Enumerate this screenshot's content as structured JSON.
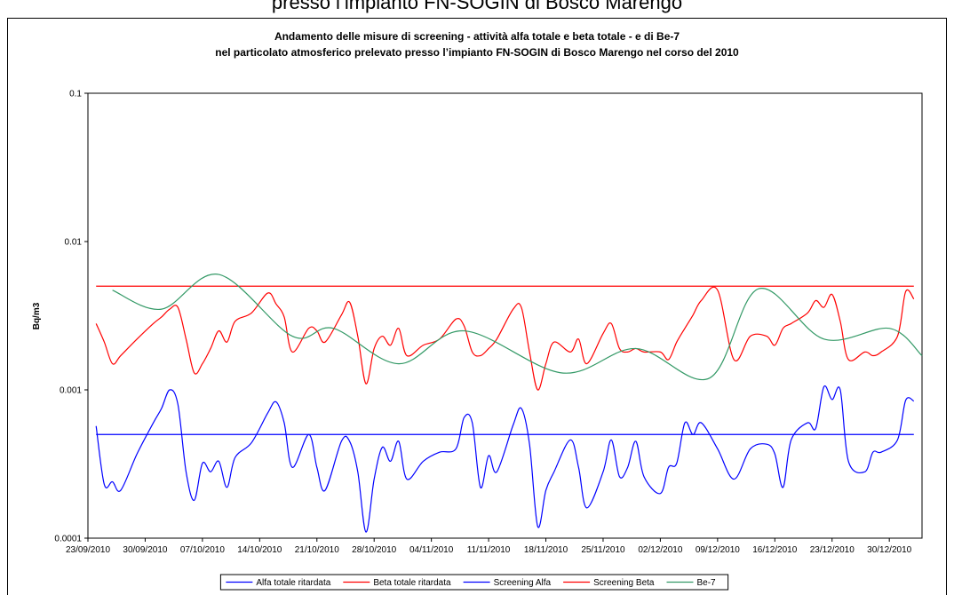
{
  "page_header": "presso l’impianto FN-SOGIN di Bosco Marengo",
  "chart_data": {
    "type": "line",
    "title": "Andamento delle misure di screening - attività alfa totale e beta totale - e di Be-7",
    "subtitle": "nel particolato atmosferico prelevato presso l’impianto FN-SOGIN di Bosco Marengo nel corso del 2010",
    "ylabel": "Bq/m3",
    "log_y": true,
    "grid": false,
    "legend": "bottom",
    "xlim": [
      "2010-09-23",
      "2011-01-03"
    ],
    "xticks": [
      {
        "value": "2010-09-23",
        "label": "23/09/2010"
      },
      {
        "value": "2010-09-30",
        "label": "30/09/2010"
      },
      {
        "value": "2010-10-07",
        "label": "07/10/2010"
      },
      {
        "value": "2010-10-14",
        "label": "14/10/2010"
      },
      {
        "value": "2010-10-21",
        "label": "21/10/2010"
      },
      {
        "value": "2010-10-28",
        "label": "28/10/2010"
      },
      {
        "value": "2010-11-04",
        "label": "04/11/2010"
      },
      {
        "value": "2010-11-11",
        "label": "11/11/2010"
      },
      {
        "value": "2010-11-18",
        "label": "18/11/2010"
      },
      {
        "value": "2010-11-25",
        "label": "25/11/2010"
      },
      {
        "value": "2010-12-02",
        "label": "02/12/2010"
      },
      {
        "value": "2010-12-09",
        "label": "09/12/2010"
      },
      {
        "value": "2010-12-16",
        "label": "16/12/2010"
      },
      {
        "value": "2010-12-23",
        "label": "23/12/2010"
      },
      {
        "value": "2010-12-30",
        "label": "30/12/2010"
      }
    ],
    "ylim": [
      0.0001,
      0.1
    ],
    "yticks": [
      0.0001,
      0.001,
      0.01,
      0.1
    ],
    "series": [
      {
        "name": "Alfa totale ritardata",
        "color": "#0000ff",
        "x": [
          "2010-09-24",
          "2010-09-25",
          "2010-09-26",
          "2010-09-27",
          "2010-09-29",
          "2010-10-01",
          "2010-10-02",
          "2010-10-03",
          "2010-10-04",
          "2010-10-05",
          "2010-10-06",
          "2010-10-07",
          "2010-10-08",
          "2010-10-09",
          "2010-10-10",
          "2010-10-11",
          "2010-10-13",
          "2010-10-15",
          "2010-10-16",
          "2010-10-17",
          "2010-10-18",
          "2010-10-20",
          "2010-10-21",
          "2010-10-22",
          "2010-10-24",
          "2010-10-25",
          "2010-10-26",
          "2010-10-27",
          "2010-10-28",
          "2010-10-29",
          "2010-10-30",
          "2010-10-31",
          "2010-11-01",
          "2010-11-03",
          "2010-11-05",
          "2010-11-07",
          "2010-11-08",
          "2010-11-09",
          "2010-11-10",
          "2010-11-11",
          "2010-11-12",
          "2010-11-14",
          "2010-11-15",
          "2010-11-16",
          "2010-11-17",
          "2010-11-18",
          "2010-11-19",
          "2010-11-21",
          "2010-11-22",
          "2010-11-23",
          "2010-11-25",
          "2010-11-26",
          "2010-11-27",
          "2010-11-28",
          "2010-11-29",
          "2010-11-30",
          "2010-12-02",
          "2010-12-03",
          "2010-12-04",
          "2010-12-05",
          "2010-12-06",
          "2010-12-07",
          "2010-12-09",
          "2010-12-11",
          "2010-12-13",
          "2010-12-15",
          "2010-12-16",
          "2010-12-17",
          "2010-12-18",
          "2010-12-20",
          "2010-12-21",
          "2010-12-22",
          "2010-12-23",
          "2010-12-24",
          "2010-12-25",
          "2010-12-27",
          "2010-12-28",
          "2010-12-29",
          "2010-12-31",
          "2011-01-01",
          "2011-01-02"
        ],
        "values": [
          0.00057,
          0.00023,
          0.00024,
          0.00021,
          0.00037,
          0.0006,
          0.00075,
          0.001,
          0.0008,
          0.00028,
          0.00018,
          0.00032,
          0.00028,
          0.00033,
          0.00022,
          0.00035,
          0.00044,
          0.0007,
          0.00083,
          0.0006,
          0.0003,
          0.0005,
          0.0003,
          0.00021,
          0.00045,
          0.00045,
          0.00028,
          0.00011,
          0.00025,
          0.00041,
          0.00033,
          0.00045,
          0.00025,
          0.00033,
          0.00038,
          0.0004,
          0.00065,
          0.0006,
          0.00022,
          0.00036,
          0.00028,
          0.00058,
          0.00075,
          0.00043,
          0.00012,
          0.00021,
          0.00028,
          0.00046,
          0.0003,
          0.00016,
          0.00028,
          0.00046,
          0.00026,
          0.0003,
          0.00045,
          0.00026,
          0.0002,
          0.0003,
          0.00032,
          0.0006,
          0.0005,
          0.0006,
          0.0004,
          0.00025,
          0.0004,
          0.00043,
          0.00037,
          0.00022,
          0.00046,
          0.0006,
          0.00055,
          0.00105,
          0.00086,
          0.001,
          0.00033,
          0.00028,
          0.00038,
          0.00038,
          0.00046,
          0.00085,
          0.00084
        ]
      },
      {
        "name": "Beta totale ritardata",
        "color": "#ff0000",
        "x": [
          "2010-09-24",
          "2010-09-25",
          "2010-09-26",
          "2010-09-27",
          "2010-09-29",
          "2010-10-01",
          "2010-10-02",
          "2010-10-03",
          "2010-10-04",
          "2010-10-05",
          "2010-10-06",
          "2010-10-07",
          "2010-10-08",
          "2010-10-09",
          "2010-10-10",
          "2010-10-11",
          "2010-10-13",
          "2010-10-15",
          "2010-10-16",
          "2010-10-17",
          "2010-10-18",
          "2010-10-20",
          "2010-10-21",
          "2010-10-22",
          "2010-10-24",
          "2010-10-25",
          "2010-10-26",
          "2010-10-27",
          "2010-10-28",
          "2010-10-29",
          "2010-10-30",
          "2010-10-31",
          "2010-11-01",
          "2010-11-03",
          "2010-11-05",
          "2010-11-07",
          "2010-11-08",
          "2010-11-09",
          "2010-11-10",
          "2010-11-11",
          "2010-11-12",
          "2010-11-14",
          "2010-11-15",
          "2010-11-16",
          "2010-11-17",
          "2010-11-18",
          "2010-11-19",
          "2010-11-21",
          "2010-11-22",
          "2010-11-23",
          "2010-11-25",
          "2010-11-26",
          "2010-11-27",
          "2010-11-28",
          "2010-11-29",
          "2010-11-30",
          "2010-12-02",
          "2010-12-03",
          "2010-12-04",
          "2010-12-05",
          "2010-12-06",
          "2010-12-07",
          "2010-12-09",
          "2010-12-11",
          "2010-12-13",
          "2010-12-15",
          "2010-12-16",
          "2010-12-17",
          "2010-12-18",
          "2010-12-20",
          "2010-12-21",
          "2010-12-22",
          "2010-12-23",
          "2010-12-24",
          "2010-12-25",
          "2010-12-27",
          "2010-12-28",
          "2010-12-29",
          "2010-12-31",
          "2011-01-01",
          "2011-01-02"
        ],
        "values": [
          0.0028,
          0.0021,
          0.0015,
          0.0017,
          0.0022,
          0.0028,
          0.0031,
          0.0035,
          0.0036,
          0.0022,
          0.0013,
          0.0015,
          0.0019,
          0.0025,
          0.0021,
          0.0029,
          0.0033,
          0.0045,
          0.0038,
          0.0031,
          0.0018,
          0.0026,
          0.0025,
          0.0021,
          0.0032,
          0.0039,
          0.0023,
          0.0011,
          0.0019,
          0.0023,
          0.002,
          0.0026,
          0.0017,
          0.002,
          0.0022,
          0.003,
          0.0027,
          0.0018,
          0.0017,
          0.0019,
          0.0022,
          0.0035,
          0.0036,
          0.0018,
          0.001,
          0.0015,
          0.0021,
          0.0018,
          0.0022,
          0.0015,
          0.0024,
          0.0028,
          0.0019,
          0.0018,
          0.0019,
          0.0018,
          0.0018,
          0.0016,
          0.0021,
          0.0026,
          0.0032,
          0.004,
          0.0047,
          0.0016,
          0.0023,
          0.0023,
          0.002,
          0.0026,
          0.0028,
          0.0033,
          0.004,
          0.0036,
          0.0044,
          0.0029,
          0.0016,
          0.0018,
          0.0017,
          0.0018,
          0.0023,
          0.0046,
          0.0041
        ]
      },
      {
        "name": "Screening Alfa",
        "color": "#0000ff",
        "x": [
          "2010-09-24",
          "2011-01-02"
        ],
        "values": [
          0.0005,
          0.0005
        ]
      },
      {
        "name": "Screening Beta",
        "color": "#ff0000",
        "x": [
          "2010-09-24",
          "2011-01-02"
        ],
        "values": [
          0.005,
          0.005
        ]
      },
      {
        "name": "Be-7",
        "color": "#339966",
        "x": [
          "2010-09-26",
          "2010-10-02",
          "2010-10-09",
          "2010-10-18",
          "2010-10-23",
          "2010-10-31",
          "2010-11-08",
          "2010-11-20",
          "2010-11-29",
          "2010-12-08",
          "2010-12-14",
          "2010-12-22",
          "2010-12-30",
          "2011-01-03"
        ],
        "values": [
          0.0047,
          0.0035,
          0.006,
          0.0023,
          0.0026,
          0.0015,
          0.0025,
          0.0013,
          0.0019,
          0.0012,
          0.0048,
          0.0022,
          0.0026,
          0.0017
        ]
      }
    ]
  }
}
